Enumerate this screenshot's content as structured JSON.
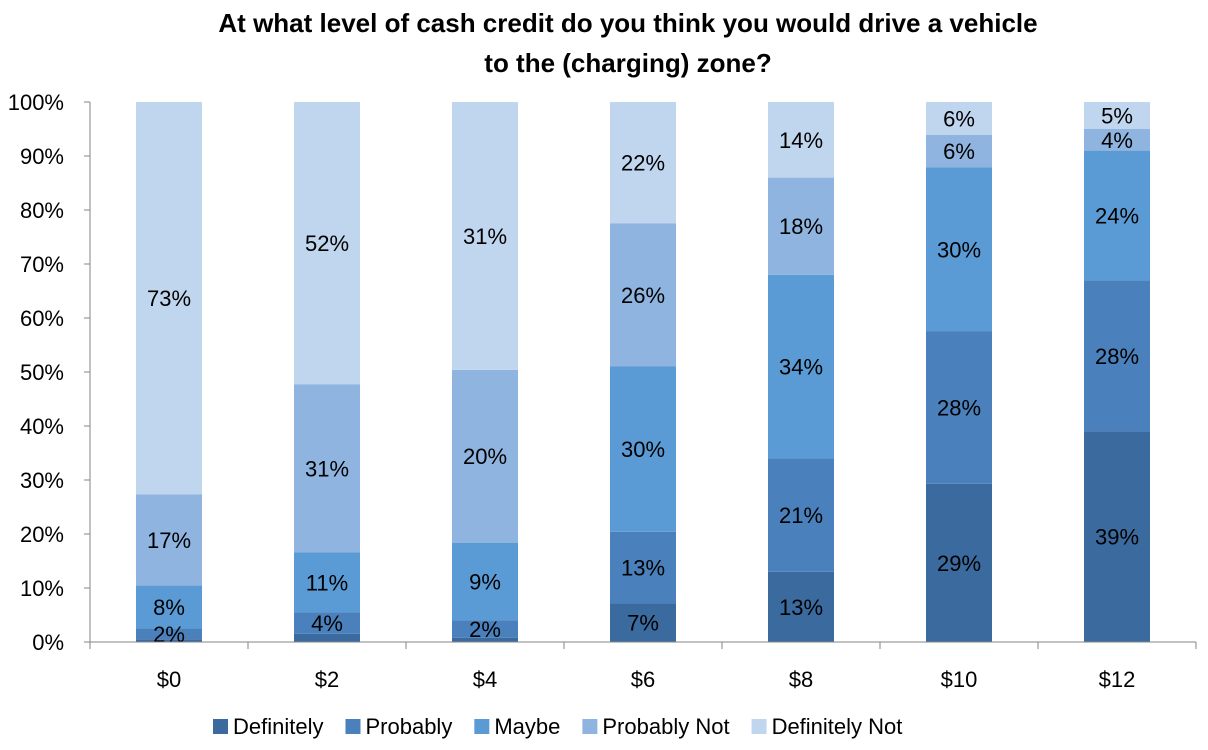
{
  "chart_data": {
    "type": "bar",
    "stacked": true,
    "percent_stacked": true,
    "title": "At what level of cash credit do you think you would drive a vehicle to the (charging) zone?",
    "title_lines": [
      "At what level of cash credit do you think you would drive a vehicle",
      "to the (charging) zone?"
    ],
    "categories": [
      "$0",
      "$2",
      "$4",
      "$6",
      "$8",
      "$10",
      "$12"
    ],
    "ylim": [
      0,
      100
    ],
    "yticks": [
      0,
      10,
      20,
      30,
      40,
      50,
      60,
      70,
      80,
      90,
      100
    ],
    "ytick_labels": [
      "0%",
      "10%",
      "20%",
      "30%",
      "40%",
      "50%",
      "60%",
      "70%",
      "80%",
      "90%",
      "100%"
    ],
    "grid": false,
    "legend_position": "bottom",
    "series": [
      {
        "name": "Definitely",
        "color": "#3b6a9e",
        "values": [
          0.5,
          1.5,
          0.5,
          7,
          13,
          29,
          39
        ],
        "labels": [
          "",
          "",
          "",
          "7%",
          "13%",
          "29%",
          "39%"
        ]
      },
      {
        "name": "Probably",
        "color": "#4a80bb",
        "values": [
          2,
          4,
          2,
          13,
          21,
          28,
          28
        ],
        "labels": [
          "2%",
          "4%",
          "2%",
          "13%",
          "21%",
          "28%",
          "28%"
        ]
      },
      {
        "name": "Maybe",
        "color": "#5b9bd5",
        "values": [
          8,
          11,
          9,
          30,
          34,
          30,
          24
        ],
        "labels": [
          "8%",
          "11%",
          "9%",
          "30%",
          "34%",
          "30%",
          "24%"
        ]
      },
      {
        "name": "Probably Not",
        "color": "#8eb4df",
        "values": [
          17,
          31,
          20,
          26,
          18,
          6,
          4
        ],
        "labels": [
          "17%",
          "31%",
          "20%",
          "26%",
          "18%",
          "6%",
          "4%"
        ]
      },
      {
        "name": "Definitely Not",
        "color": "#c0d5ee",
        "values": [
          73,
          52,
          31,
          22,
          14,
          6,
          5
        ],
        "labels": [
          "73%",
          "52%",
          "31%",
          "22%",
          "14%",
          "6%",
          "5%"
        ]
      }
    ]
  }
}
